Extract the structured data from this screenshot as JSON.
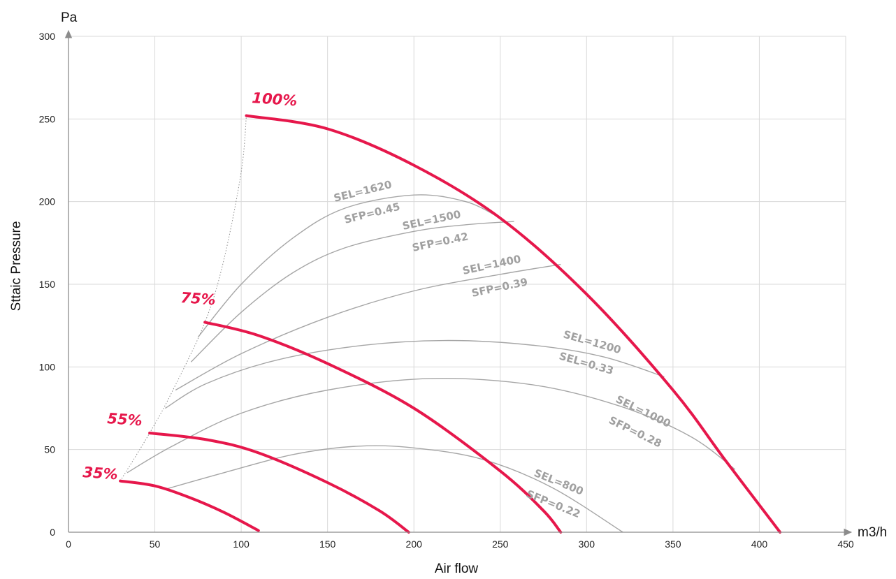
{
  "chart_data": {
    "type": "line",
    "title": "",
    "xlabel": "Air flow",
    "ylabel": "Sttaic Pressure",
    "x_unit": "m3/h",
    "y_unit": "Pa",
    "xlim": [
      0,
      450
    ],
    "ylim": [
      0,
      300
    ],
    "x_ticks": [
      "0",
      "50",
      "100",
      "150",
      "200",
      "250",
      "300",
      "350",
      "400",
      "450"
    ],
    "y_ticks": [
      "0",
      "50",
      "100",
      "150",
      "200",
      "250",
      "300"
    ],
    "grid": true,
    "colors": {
      "fan_curve": "#e6174b",
      "system_curve": "#a6a6a6",
      "grid": "#d9d9d9"
    },
    "fan_curves": [
      {
        "label": "100%",
        "x": [
          103,
          150,
          200,
          250,
          300,
          350,
          380,
          412
        ],
        "y": [
          252,
          244,
          222,
          190,
          144,
          86,
          44,
          0
        ]
      },
      {
        "label": "75%",
        "x": [
          79,
          110,
          150,
          200,
          250,
          275,
          285
        ],
        "y": [
          127,
          119,
          102,
          75,
          37,
          13,
          0
        ]
      },
      {
        "label": "55%",
        "x": [
          47,
          80,
          110,
          150,
          180,
          197
        ],
        "y": [
          60,
          56,
          48,
          30,
          13,
          0
        ]
      },
      {
        "label": "35%",
        "x": [
          30,
          50,
          70,
          90,
          110
        ],
        "y": [
          31,
          28,
          21,
          12,
          1
        ]
      }
    ],
    "system_curves": [
      {
        "label1": "SEL=1620",
        "label2": "SFP=0.45",
        "x": [
          75,
          100,
          130,
          160,
          200,
          230,
          250
        ],
        "y": [
          118,
          150,
          178,
          196,
          204,
          200,
          190
        ]
      },
      {
        "label1": "SEL=1500",
        "label2": "SFP=0.42",
        "x": [
          71,
          100,
          130,
          160,
          200,
          230,
          258
        ],
        "y": [
          103,
          133,
          157,
          172,
          182,
          186,
          188
        ]
      },
      {
        "label1": "SEL=1400",
        "label2": "SFP=0.39",
        "x": [
          62,
          100,
          150,
          200,
          250,
          285
        ],
        "y": [
          86,
          108,
          130,
          146,
          156,
          162
        ]
      },
      {
        "label1": "SEL=1200",
        "label2": "SEL=0.33",
        "x": [
          56,
          80,
          120,
          170,
          220,
          270,
          310,
          345
        ],
        "y": [
          75,
          90,
          104,
          113,
          116,
          113,
          106,
          94
        ]
      },
      {
        "label1": "SEL=1000",
        "label2": "SFP=0.28",
        "x": [
          34,
          60,
          100,
          150,
          210,
          270,
          320,
          360,
          386
        ],
        "y": [
          36,
          52,
          72,
          86,
          93,
          89,
          76,
          58,
          38
        ]
      },
      {
        "label1": "SEL=800",
        "label2": "SFP=0.22",
        "x": [
          56,
          90,
          130,
          167,
          200,
          240,
          280,
          321
        ],
        "y": [
          26,
          36,
          47,
          52,
          51,
          44,
          27,
          0
        ]
      }
    ],
    "envelope": {
      "x": [
        30,
        47,
        60,
        79,
        90,
        100,
        103
      ],
      "y": [
        31,
        60,
        85,
        127,
        165,
        218,
        252
      ]
    }
  }
}
